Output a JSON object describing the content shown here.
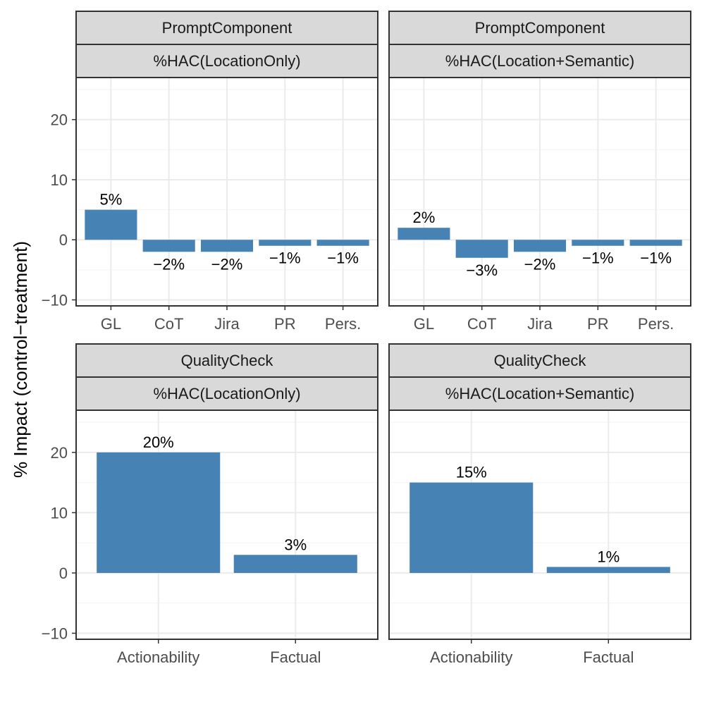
{
  "y_axis_title": "% Impact (control−treatment)",
  "chart_data": [
    {
      "type": "bar",
      "strip_top": "PromptComponent",
      "strip_bottom": "%HAC(LocationOnly)",
      "categories": [
        "GL",
        "CoT",
        "Jira",
        "PR",
        "Pers."
      ],
      "values": [
        5,
        -2,
        -2,
        -1,
        -1
      ],
      "labels": [
        "5%",
        "−2%",
        "−2%",
        "−1%",
        "−1%"
      ],
      "ylim": [
        -11,
        27
      ],
      "yticks": [
        -10,
        0,
        10,
        20
      ],
      "ytick_labels": [
        "−10",
        "0",
        "10",
        "20"
      ],
      "ylabel": "% Impact (control−treatment)",
      "color": "#4682b4"
    },
    {
      "type": "bar",
      "strip_top": "PromptComponent",
      "strip_bottom": "%HAC(Location+Semantic)",
      "categories": [
        "GL",
        "CoT",
        "Jira",
        "PR",
        "Pers."
      ],
      "values": [
        2,
        -3,
        -2,
        -1,
        -1
      ],
      "labels": [
        "2%",
        "−3%",
        "−2%",
        "−1%",
        "−1%"
      ],
      "ylim": [
        -11,
        27
      ],
      "yticks": [
        -10,
        0,
        10,
        20
      ],
      "ytick_labels": [
        "−10",
        "0",
        "10",
        "20"
      ],
      "ylabel": "% Impact (control−treatment)",
      "color": "#4682b4"
    },
    {
      "type": "bar",
      "strip_top": "QualityCheck",
      "strip_bottom": "%HAC(LocationOnly)",
      "categories": [
        "Actionability",
        "Factual"
      ],
      "values": [
        20,
        3
      ],
      "labels": [
        "20%",
        "3%"
      ],
      "ylim": [
        -11,
        27
      ],
      "yticks": [
        -10,
        0,
        10,
        20
      ],
      "ytick_labels": [
        "−10",
        "0",
        "10",
        "20"
      ],
      "ylabel": "% Impact (control−treatment)",
      "color": "#4682b4"
    },
    {
      "type": "bar",
      "strip_top": "QualityCheck",
      "strip_bottom": "%HAC(Location+Semantic)",
      "categories": [
        "Actionability",
        "Factual"
      ],
      "values": [
        15,
        1
      ],
      "labels": [
        "15%",
        "1%"
      ],
      "ylim": [
        -11,
        27
      ],
      "yticks": [
        -10,
        0,
        10,
        20
      ],
      "ytick_labels": [
        "−10",
        "0",
        "10",
        "20"
      ],
      "ylabel": "% Impact (control−treatment)",
      "color": "#4682b4"
    }
  ]
}
